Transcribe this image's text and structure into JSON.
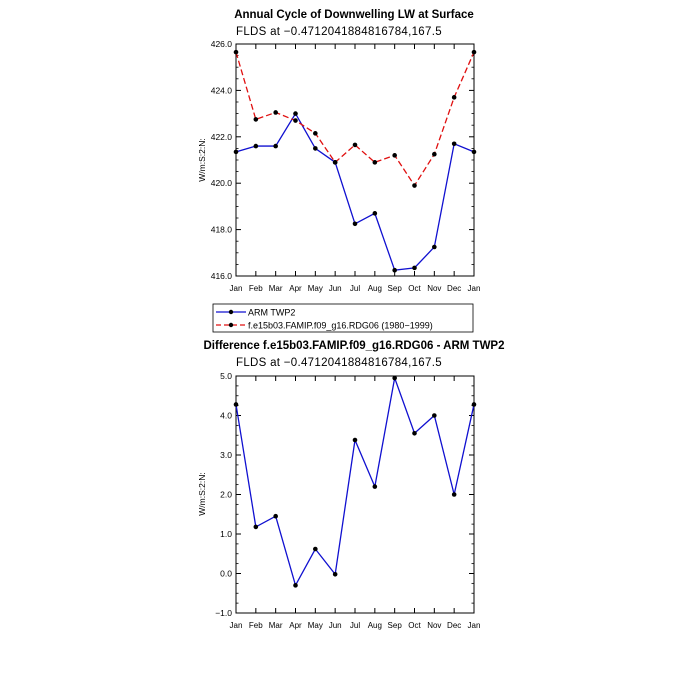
{
  "chart_data": [
    {
      "type": "line",
      "title": "Annual Cycle of Downwelling LW at Surface",
      "subtitle": "FLDS at −0.4712041884816784,167.5",
      "ylabel": "W/m:S:2:N:",
      "categories": [
        "Jan",
        "Feb",
        "Mar",
        "Apr",
        "May",
        "Jun",
        "Jul",
        "Aug",
        "Sep",
        "Oct",
        "Nov",
        "Dec",
        "Jan"
      ],
      "ylim": [
        416.0,
        426.0
      ],
      "yticks": [
        "416.0",
        "418.0",
        "420.0",
        "422.0",
        "424.0",
        "426.0"
      ],
      "series": [
        {
          "name": "ARM TWP2",
          "color": "#1010d0",
          "dash": "solid",
          "values": [
            421.35,
            421.6,
            421.6,
            423.0,
            421.5,
            420.9,
            418.25,
            418.7,
            416.25,
            416.35,
            417.25,
            421.7,
            421.35
          ]
        },
        {
          "name": "f.e15b03.FAMIP.f09_g16.RDG06 (1980−1999)",
          "color": "#e01010",
          "dash": "dashed",
          "values": [
            425.65,
            422.75,
            423.05,
            422.7,
            422.15,
            420.9,
            421.65,
            420.9,
            421.2,
            419.9,
            421.25,
            423.7,
            425.65
          ]
        }
      ],
      "legend": "below"
    },
    {
      "type": "line",
      "title": "Difference f.e15b03.FAMIP.f09_g16.RDG06 - ARM TWP2",
      "subtitle": "FLDS at −0.4712041884816784,167.5",
      "ylabel": "W/m:S:2:N:",
      "categories": [
        "Jan",
        "Feb",
        "Mar",
        "Apr",
        "May",
        "Jun",
        "Jul",
        "Aug",
        "Sep",
        "Oct",
        "Nov",
        "Dec",
        "Jan"
      ],
      "ylim": [
        -1.0,
        5.0
      ],
      "yticks": [
        "−1.0",
        "0.0",
        "1.0",
        "2.0",
        "3.0",
        "4.0",
        "5.0"
      ],
      "series": [
        {
          "color": "#1010d0",
          "dash": "solid",
          "values": [
            4.28,
            1.18,
            1.45,
            -0.3,
            0.62,
            -0.02,
            3.38,
            2.2,
            4.95,
            3.55,
            4.0,
            2.0,
            4.28
          ]
        }
      ]
    }
  ]
}
